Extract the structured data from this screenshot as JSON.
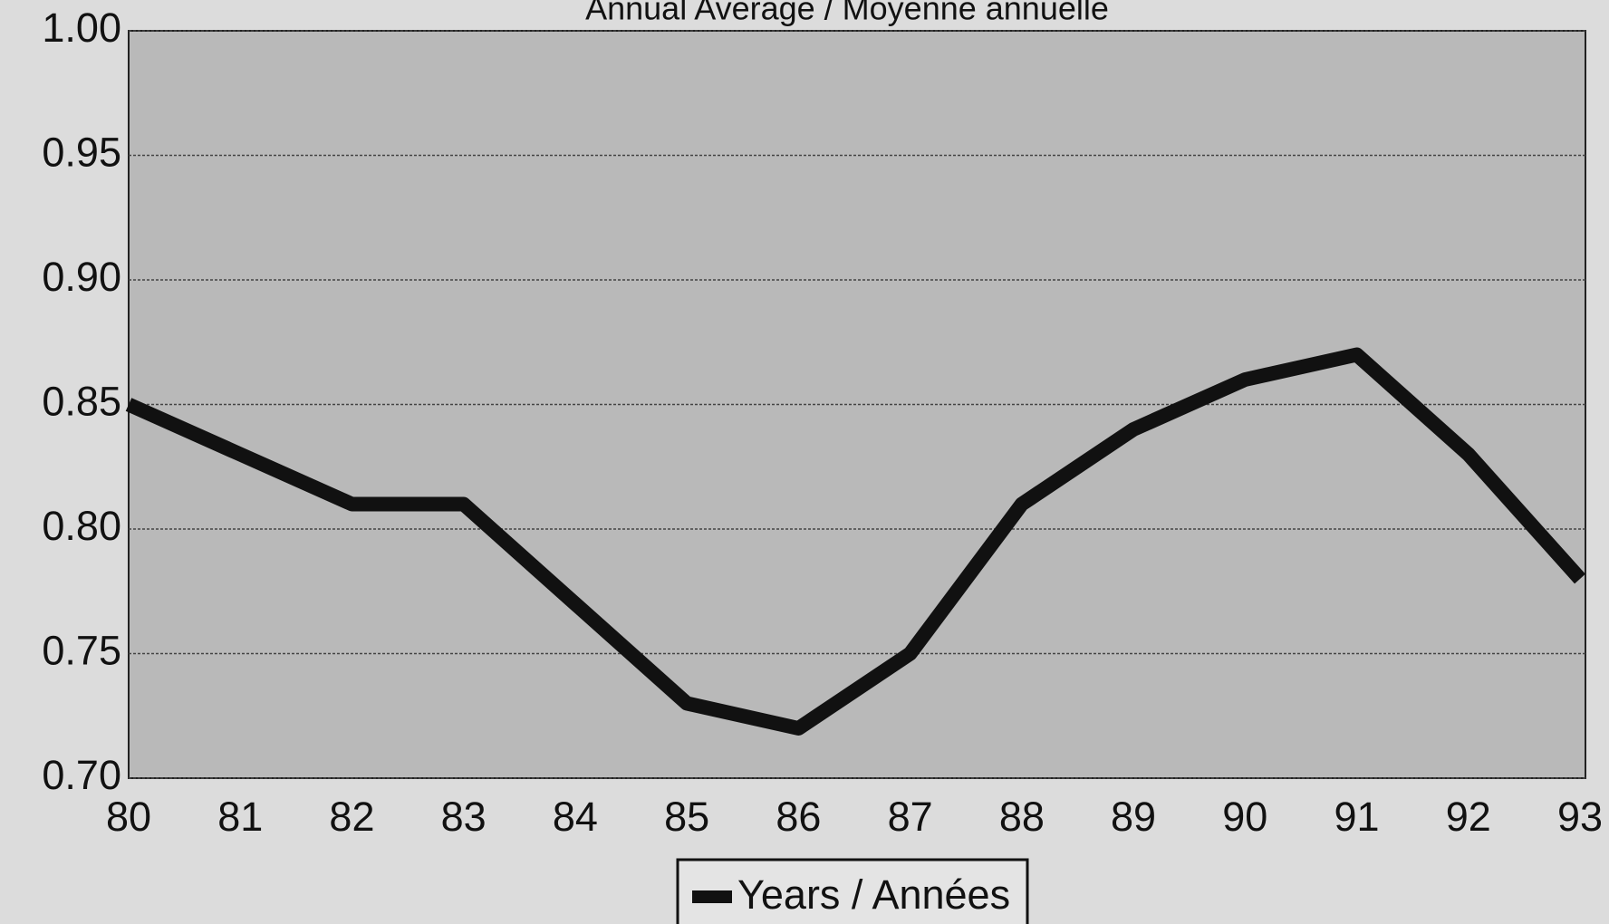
{
  "chart_data": {
    "type": "line",
    "title": "Annual Average / Moyenne annuelle",
    "categories": [
      "80",
      "81",
      "82",
      "83",
      "84",
      "85",
      "86",
      "87",
      "88",
      "89",
      "90",
      "91",
      "92",
      "93"
    ],
    "series": [
      {
        "name": "Years / Années",
        "color": "#111111",
        "values": [
          0.85,
          0.83,
          0.81,
          0.81,
          0.77,
          0.73,
          0.72,
          0.75,
          0.81,
          0.84,
          0.86,
          0.87,
          0.83,
          0.78
        ]
      }
    ],
    "ylim": [
      0.7,
      1.0
    ],
    "yticks": [
      {
        "value": 0.7,
        "label": "0.70"
      },
      0.75,
      {
        "value": 0.8,
        "label": "0.80"
      },
      0.85,
      {
        "value": 0.9,
        "label": "0.90"
      },
      0.95,
      {
        "value": 1.0,
        "label": "1.00"
      }
    ],
    "grid": true,
    "legend": "bottom"
  }
}
